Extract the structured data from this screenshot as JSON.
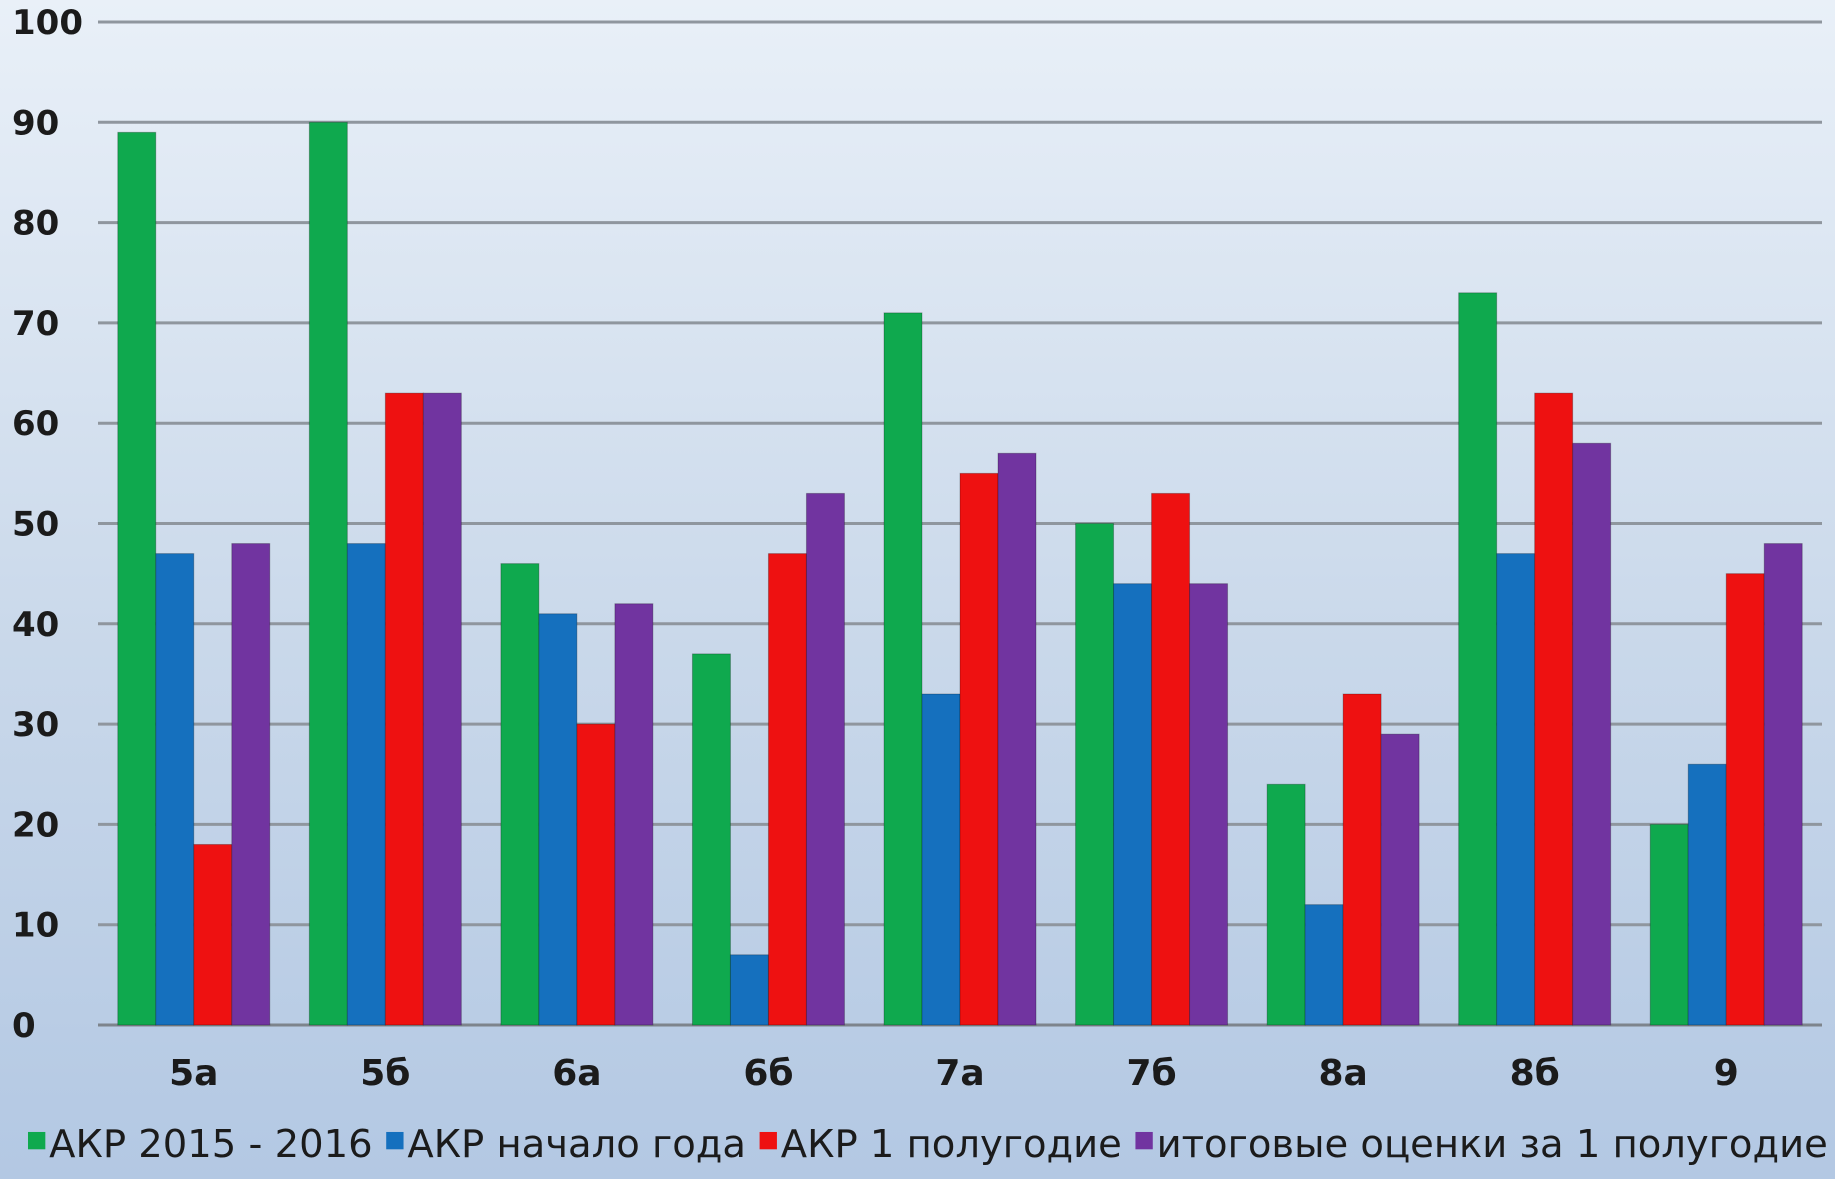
{
  "chart_data": {
    "type": "bar",
    "title": "",
    "xlabel": "",
    "ylabel": "",
    "ylim": [
      0,
      100
    ],
    "yticks": [
      0,
      10,
      20,
      30,
      40,
      50,
      60,
      70,
      80,
      90,
      100
    ],
    "grid": true,
    "legend_position": "bottom",
    "categories": [
      "5а",
      "5б",
      "6а",
      "6б",
      "7а",
      "7б",
      "8а",
      "8б",
      "9"
    ],
    "series": [
      {
        "name": "АКР 2015 - 2016",
        "color": "#0fa94e",
        "values": [
          89,
          90,
          46,
          37,
          71,
          50,
          24,
          73,
          20
        ]
      },
      {
        "name": "АКР начало года",
        "color": "#1570be",
        "values": [
          47,
          48,
          41,
          7,
          33,
          44,
          12,
          47,
          26
        ]
      },
      {
        "name": "АКР 1 полугодие",
        "color": "#ee1111",
        "values": [
          18,
          63,
          30,
          47,
          55,
          53,
          33,
          63,
          45
        ]
      },
      {
        "name": "итоговые оценки за 1 полугодие",
        "color": "#7134a0",
        "values": [
          48,
          63,
          42,
          53,
          57,
          44,
          29,
          58,
          48
        ]
      }
    ]
  }
}
